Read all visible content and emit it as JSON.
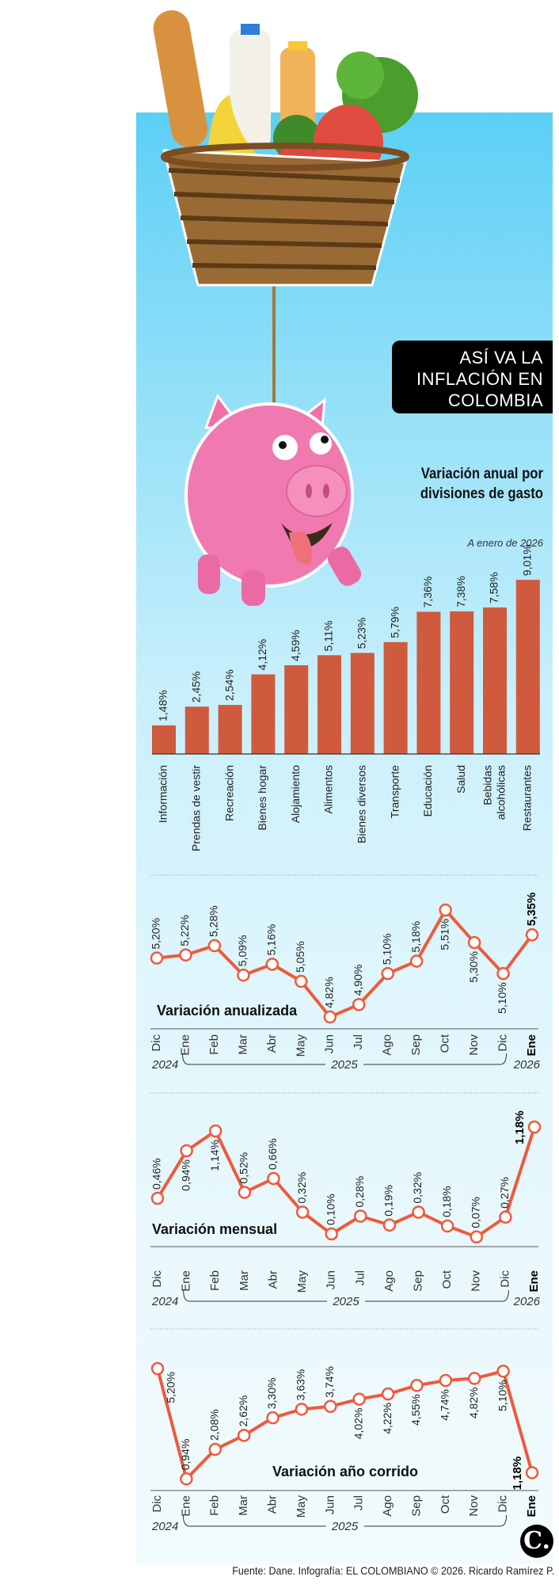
{
  "header": {
    "title_lines": [
      "ASÍ VA LA",
      "INFLACIÓN EN",
      "COLOMBIA"
    ]
  },
  "bar_section": {
    "subtitle": "Variación anual por divisiones de gasto",
    "note": "A enero de 2026"
  },
  "colors": {
    "accent": "#cf5a3d",
    "line": "#ee5a3c",
    "panel_top": "#5ccff6",
    "title_bg": "#000000"
  },
  "chart_data": [
    {
      "type": "bar",
      "title": "Variación anual por divisiones de gasto",
      "categories": [
        "Información",
        "Prendas de vestir",
        "Recreación",
        "Bienes hogar",
        "Alojamiento",
        "Alimentos",
        "Bienes diversos",
        "Transporte",
        "Educación",
        "Salud",
        "Bebidas alcohólicas",
        "Restaurantes"
      ],
      "values": [
        1.48,
        2.45,
        2.54,
        4.12,
        4.59,
        5.11,
        5.23,
        5.79,
        7.36,
        7.38,
        7.58,
        9.01
      ],
      "labels": [
        "1,48%",
        "2,45%",
        "2,54%",
        "4,12%",
        "4,59%",
        "5,11%",
        "5,23%",
        "5,79%",
        "7,36%",
        "7,38%",
        "7,58%",
        "9,01%"
      ],
      "unit": "%",
      "ylim": [
        0,
        9.01
      ]
    },
    {
      "type": "line",
      "title": "Variación anualizada",
      "categories": [
        "Dic",
        "Ene",
        "Feb",
        "Mar",
        "Abr",
        "May",
        "Jun",
        "Jul",
        "Ago",
        "Sep",
        "Oct",
        "Nov",
        "Dic",
        "Ene"
      ],
      "years": {
        "start": "2024",
        "middle": "2025",
        "end": "2026"
      },
      "values": [
        5.2,
        5.22,
        5.28,
        5.09,
        5.16,
        5.05,
        4.82,
        4.9,
        5.1,
        5.18,
        5.51,
        5.3,
        5.1,
        5.35
      ],
      "labels": [
        "5,20%",
        "5,22%",
        "5,28%",
        "5,09%",
        "5,16%",
        "5,05%",
        "4,82%",
        "4,90%",
        "5,10%",
        "5,18%",
        "5,51%",
        "5,30%",
        "5,10%",
        "5,35%"
      ]
    },
    {
      "type": "line",
      "title": "Variación mensual",
      "categories": [
        "Dic",
        "Ene",
        "Feb",
        "Mar",
        "Abr",
        "May",
        "Jun",
        "Jul",
        "Ago",
        "Sep",
        "Oct",
        "Nov",
        "Dic",
        "Ene"
      ],
      "years": {
        "start": "2024",
        "middle": "2025",
        "end": "2026"
      },
      "values": [
        0.46,
        0.94,
        1.14,
        0.52,
        0.66,
        0.32,
        0.1,
        0.28,
        0.19,
        0.32,
        0.18,
        0.07,
        0.27,
        1.18
      ],
      "labels": [
        "0,46%",
        "0,94%",
        "1,14%",
        "0,52%",
        "0,66%",
        "0,32%",
        "0,10%",
        "0,28%",
        "0,19%",
        "0,32%",
        "0,18%",
        "0,07%",
        "0,27%",
        "1,18%"
      ]
    },
    {
      "type": "line",
      "title": "Variación año corrido",
      "categories": [
        "Dic",
        "Ene",
        "Feb",
        "Mar",
        "Abr",
        "May",
        "Jun",
        "Jul",
        "Ago",
        "Sep",
        "Oct",
        "Nov",
        "Dic",
        "Ene"
      ],
      "years": {
        "start": "2024",
        "middle": "2025"
      },
      "values": [
        5.2,
        0.94,
        2.08,
        2.62,
        3.3,
        3.63,
        3.74,
        4.02,
        4.22,
        4.55,
        4.74,
        4.82,
        5.1,
        1.18
      ],
      "labels": [
        "5,20%",
        "0,94%",
        "2,08%",
        "2,62%",
        "3,30%",
        "3,63%",
        "3,74%",
        "4,02%",
        "4,22%",
        "4,55%",
        "4,74%",
        "4,82%",
        "5,10%",
        "1,18%"
      ]
    }
  ],
  "footer": {
    "source": "Fuente: Dane. Infografía: EL COLOMBIANO © 2026. Ricardo Ramírez P.",
    "logo_text": "C."
  }
}
